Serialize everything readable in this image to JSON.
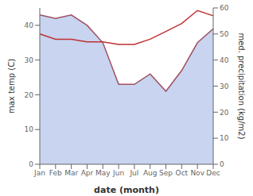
{
  "chart_data": {
    "type": "line",
    "categories": [
      "Jan",
      "Feb",
      "Mar",
      "Apr",
      "May",
      "Jun",
      "Jul",
      "Aug",
      "Sep",
      "Oct",
      "Nov",
      "Dec"
    ],
    "xlabel": "date (month)",
    "ylabel": "max temp (C)",
    "y2label": "med. precipitation (kg/m2)",
    "ylim": [
      0,
      45
    ],
    "yticks": [
      0,
      10,
      20,
      30,
      40
    ],
    "y2lim": [
      0,
      60
    ],
    "y2ticks": [
      0,
      10,
      20,
      30,
      40,
      50,
      60
    ],
    "grid": false,
    "series": [
      {
        "type": "area",
        "color": "#c8d4f0",
        "values": [
          43,
          42,
          43,
          40,
          35,
          23,
          23,
          26,
          21,
          27,
          35,
          39
        ]
      },
      {
        "type": "line",
        "color": "#a05060",
        "values": [
          43,
          42,
          43,
          40,
          35,
          23,
          23,
          26,
          21,
          27,
          35,
          39
        ]
      },
      {
        "type": "line",
        "axis": "y2",
        "color": "#c03030",
        "values": [
          50,
          48,
          48,
          47,
          47,
          46,
          46,
          48,
          51,
          54,
          59,
          57
        ]
      }
    ]
  }
}
